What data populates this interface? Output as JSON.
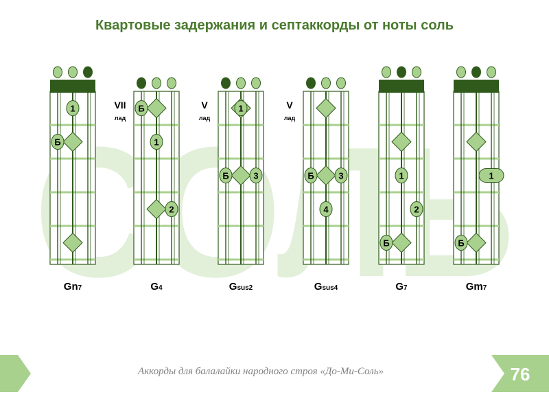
{
  "title": "Квартовые задержания и септаккорды от ноты соль",
  "watermark": "СОЛЬ",
  "footer": "Аккорды для балалайки народного строя «До-Ми-Соль»",
  "page_number": "76",
  "colors": {
    "title": "#4a7a2e",
    "dark_green": "#2f5a1c",
    "light_green": "#a9d18e",
    "fret_line": "#a9d18e",
    "watermark": "#e2efd9",
    "footer_bar": "#a9d18e"
  },
  "fret_label_word": "лад",
  "chords": [
    {
      "id": "gn7",
      "name_main": "Gn",
      "name_sub": "7",
      "nut": true,
      "fret_label": "",
      "open_strings": [
        "light",
        "light",
        "dark"
      ],
      "markers": [
        {
          "type": "circle",
          "string": 2,
          "fret": 1,
          "label": "1"
        },
        {
          "type": "circle",
          "string": 1,
          "fret": 2,
          "label": "Б"
        },
        {
          "type": "diamond",
          "string": 2,
          "fret": 2
        },
        {
          "type": "diamond",
          "string": 2,
          "fret": 5
        }
      ]
    },
    {
      "id": "g4",
      "name_main": "G",
      "name_sub": "4",
      "nut": false,
      "fret_label": "VII",
      "open_strings": [
        "dark",
        "light",
        "light"
      ],
      "markers": [
        {
          "type": "circle",
          "string": 1,
          "fret": 1,
          "label": "Б"
        },
        {
          "type": "diamond",
          "string": 2,
          "fret": 1
        },
        {
          "type": "circle",
          "string": 2,
          "fret": 2,
          "label": "1"
        },
        {
          "type": "diamond",
          "string": 2,
          "fret": 4
        },
        {
          "type": "circle",
          "string": 3,
          "fret": 4,
          "label": "2"
        }
      ]
    },
    {
      "id": "gsus2",
      "name_main": "G",
      "name_sub": "sus2",
      "nut": false,
      "fret_label": "V",
      "open_strings": [
        "dark",
        "light",
        "light"
      ],
      "markers": [
        {
          "type": "diamond",
          "string": 2,
          "fret": 1
        },
        {
          "type": "circle",
          "string": 2,
          "fret": 1,
          "label": "1"
        },
        {
          "type": "circle",
          "string": 1,
          "fret": 3,
          "label": "Б"
        },
        {
          "type": "diamond",
          "string": 2,
          "fret": 3
        },
        {
          "type": "circle",
          "string": 3,
          "fret": 3,
          "label": "3"
        }
      ]
    },
    {
      "id": "gsus4",
      "name_main": "G",
      "name_sub": "sus4",
      "nut": false,
      "fret_label": "V",
      "open_strings": [
        "dark",
        "light",
        "light"
      ],
      "markers": [
        {
          "type": "diamond",
          "string": 2,
          "fret": 1
        },
        {
          "type": "circle",
          "string": 1,
          "fret": 3,
          "label": "Б"
        },
        {
          "type": "diamond",
          "string": 2,
          "fret": 3
        },
        {
          "type": "circle",
          "string": 3,
          "fret": 3,
          "label": "3"
        },
        {
          "type": "circle",
          "string": 2,
          "fret": 4,
          "label": "4"
        }
      ]
    },
    {
      "id": "g7",
      "name_main": "G",
      "name_sub": "7",
      "nut": true,
      "fret_label": "",
      "open_strings": [
        "light",
        "dark",
        "light"
      ],
      "markers": [
        {
          "type": "diamond",
          "string": 2,
          "fret": 2
        },
        {
          "type": "circle",
          "string": 2,
          "fret": 3,
          "label": "1"
        },
        {
          "type": "circle",
          "string": 3,
          "fret": 4,
          "label": "2"
        },
        {
          "type": "circle",
          "string": 1,
          "fret": 5,
          "label": "Б"
        },
        {
          "type": "diamond",
          "string": 2,
          "fret": 5
        }
      ]
    },
    {
      "id": "gm7",
      "name_main": "Gm",
      "name_sub": "7",
      "nut": true,
      "fret_label": "",
      "open_strings": [
        "light",
        "dark",
        "light"
      ],
      "markers": [
        {
          "type": "diamond",
          "string": 2,
          "fret": 2
        },
        {
          "type": "pill",
          "string": 3,
          "fret": 3,
          "label": "1"
        },
        {
          "type": "circle",
          "string": 1,
          "fret": 5,
          "label": "Б"
        },
        {
          "type": "diamond",
          "string": 2,
          "fret": 5
        }
      ]
    }
  ]
}
